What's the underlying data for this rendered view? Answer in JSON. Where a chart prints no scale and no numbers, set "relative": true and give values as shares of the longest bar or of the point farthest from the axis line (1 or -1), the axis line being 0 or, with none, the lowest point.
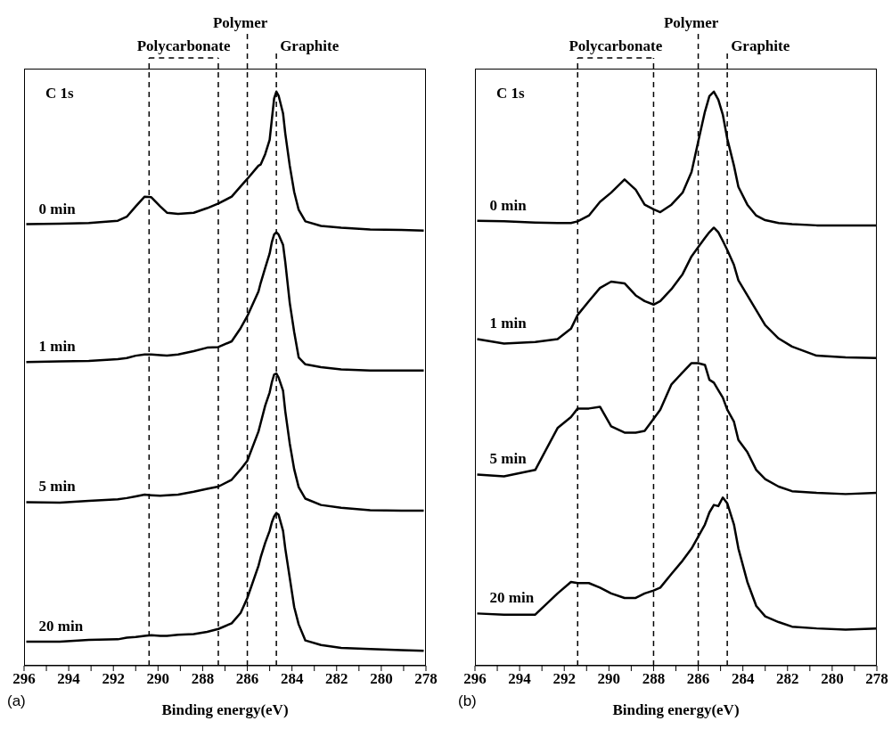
{
  "chart_data": [
    {
      "type": "line",
      "relative": true,
      "xlabel": "Binding energy(eV)",
      "xlim": [
        296,
        278
      ],
      "xticks": [
        296,
        {
          "value": 295,
          "label": null
        },
        294,
        {
          "value": 293,
          "label": null
        },
        292,
        {
          "value": 291,
          "label": null
        },
        290,
        {
          "value": 289,
          "label": null
        },
        288,
        {
          "value": 287,
          "label": null
        },
        286,
        {
          "value": 285,
          "label": null
        },
        284,
        {
          "value": 283,
          "label": null
        },
        282,
        {
          "value": 281,
          "label": null
        },
        280,
        {
          "value": 279,
          "label": null
        },
        278
      ],
      "annotations": [
        "C 1s",
        "(a)",
        "Polycarbonate"
      ],
      "x": [
        295.9,
        294.4,
        293.1,
        291.8,
        291.4,
        291.0,
        290.6,
        290.3,
        289.9,
        289.6,
        289.1,
        288.4,
        287.8,
        287.3,
        286.7,
        286.3,
        286.0,
        285.5,
        285.4,
        285.2,
        285.0,
        284.9,
        284.8,
        284.7,
        284.6,
        284.4,
        284.3,
        284.1,
        283.9,
        283.7,
        283.4,
        282.7,
        281.8,
        280.5,
        279.1,
        278.1
      ],
      "series": [
        {
          "name": "0 min",
          "color": "#000000",
          "values": [
            0.769,
            0.77,
            0.771,
            0.775,
            0.782,
            0.8,
            0.817,
            0.816,
            0.8,
            0.789,
            0.787,
            0.789,
            0.797,
            0.805,
            0.817,
            0.835,
            0.848,
            0.871,
            0.873,
            0.891,
            0.916,
            0.952,
            0.988,
            1.0,
            0.993,
            0.962,
            0.927,
            0.871,
            0.825,
            0.794,
            0.774,
            0.766,
            0.763,
            0.76,
            0.759,
            0.758
          ]
        },
        {
          "name": "1 min",
          "color": "#000000",
          "values": [
            0.529,
            0.53,
            0.531,
            0.534,
            0.536,
            0.54,
            0.542,
            0.542,
            0.541,
            0.54,
            0.542,
            0.548,
            0.554,
            0.555,
            0.565,
            0.588,
            0.609,
            0.652,
            0.667,
            0.693,
            0.718,
            0.738,
            0.751,
            0.755,
            0.751,
            0.733,
            0.703,
            0.632,
            0.581,
            0.537,
            0.525,
            0.52,
            0.516,
            0.514,
            0.514,
            0.514
          ]
        },
        {
          "name": "5 min",
          "color": "#000000",
          "values": [
            0.285,
            0.284,
            0.287,
            0.29,
            0.292,
            0.295,
            0.298,
            0.297,
            0.296,
            0.297,
            0.298,
            0.303,
            0.308,
            0.312,
            0.324,
            0.342,
            0.357,
            0.408,
            0.423,
            0.453,
            0.476,
            0.494,
            0.507,
            0.509,
            0.502,
            0.479,
            0.443,
            0.387,
            0.342,
            0.311,
            0.291,
            0.28,
            0.275,
            0.271,
            0.27,
            0.27
          ]
        },
        {
          "name": "20 min",
          "color": "#000000",
          "values": [
            0.042,
            0.042,
            0.045,
            0.046,
            0.049,
            0.05,
            0.052,
            0.053,
            0.052,
            0.052,
            0.054,
            0.055,
            0.059,
            0.064,
            0.074,
            0.092,
            0.118,
            0.174,
            0.189,
            0.214,
            0.235,
            0.25,
            0.26,
            0.266,
            0.263,
            0.235,
            0.204,
            0.153,
            0.102,
            0.072,
            0.044,
            0.036,
            0.031,
            0.029,
            0.027,
            0.026
          ]
        }
      ],
      "ref_lines": [
        {
          "axis": "x",
          "value": 290.4,
          "label": null,
          "color": "#000000",
          "line_style": "dashed"
        },
        {
          "axis": "x",
          "value": 287.3,
          "label": null,
          "color": "#000000",
          "line_style": "dashed"
        },
        {
          "axis": "x",
          "value": 286.0,
          "label": "Polymer",
          "color": "#000000",
          "line_style": "dashed"
        },
        {
          "axis": "x",
          "value": 284.7,
          "label": "Graphite",
          "color": "#000000",
          "line_style": "dashed"
        }
      ]
    },
    {
      "type": "line",
      "relative": true,
      "xlabel": "Binding energy(eV)",
      "xlim": [
        296,
        278
      ],
      "xticks": [
        296,
        {
          "value": 295,
          "label": null
        },
        294,
        {
          "value": 293,
          "label": null
        },
        292,
        {
          "value": 291,
          "label": null
        },
        290,
        {
          "value": 289,
          "label": null
        },
        288,
        {
          "value": 287,
          "label": null
        },
        286,
        {
          "value": 285,
          "label": null
        },
        284,
        {
          "value": 283,
          "label": null
        },
        282,
        {
          "value": 281,
          "label": null
        },
        280,
        {
          "value": 279,
          "label": null
        },
        278
      ],
      "annotations": [
        "C 1s",
        "(b)",
        "Polycarbonate"
      ],
      "x": [
        295.9,
        294.7,
        293.3,
        292.3,
        291.7,
        291.4,
        290.9,
        290.4,
        289.9,
        289.3,
        288.8,
        288.4,
        288.0,
        287.7,
        287.2,
        286.7,
        286.3,
        286.0,
        285.7,
        285.5,
        285.3,
        285.1,
        284.9,
        284.7,
        284.4,
        284.2,
        283.8,
        283.4,
        283.0,
        282.4,
        281.8,
        280.7,
        279.4,
        278.0
      ],
      "series": [
        {
          "name": "0 min",
          "color": "#000000",
          "values": [
            0.775,
            0.774,
            0.772,
            0.771,
            0.771,
            0.774,
            0.784,
            0.808,
            0.824,
            0.847,
            0.829,
            0.803,
            0.795,
            0.79,
            0.803,
            0.824,
            0.86,
            0.913,
            0.965,
            0.992,
            1.0,
            0.986,
            0.96,
            0.918,
            0.871,
            0.834,
            0.803,
            0.784,
            0.776,
            0.771,
            0.769,
            0.767,
            0.767,
            0.767
          ]
        },
        {
          "name": "1 min",
          "color": "#000000",
          "values": [
            0.569,
            0.561,
            0.564,
            0.569,
            0.587,
            0.611,
            0.635,
            0.658,
            0.669,
            0.666,
            0.645,
            0.635,
            0.629,
            0.635,
            0.656,
            0.682,
            0.713,
            0.729,
            0.745,
            0.755,
            0.763,
            0.755,
            0.74,
            0.724,
            0.698,
            0.671,
            0.645,
            0.619,
            0.593,
            0.57,
            0.556,
            0.54,
            0.537,
            0.536
          ]
        },
        {
          "name": "5 min",
          "color": "#000000",
          "values": [
            0.333,
            0.33,
            0.341,
            0.414,
            0.433,
            0.448,
            0.448,
            0.451,
            0.417,
            0.406,
            0.406,
            0.409,
            0.43,
            0.446,
            0.49,
            0.511,
            0.527,
            0.527,
            0.524,
            0.498,
            0.493,
            0.48,
            0.467,
            0.446,
            0.425,
            0.393,
            0.372,
            0.341,
            0.325,
            0.312,
            0.304,
            0.301,
            0.299,
            0.301
          ]
        },
        {
          "name": "20 min",
          "color": "#000000",
          "values": [
            0.091,
            0.089,
            0.089,
            0.126,
            0.146,
            0.144,
            0.144,
            0.136,
            0.126,
            0.118,
            0.118,
            0.126,
            0.131,
            0.136,
            0.16,
            0.183,
            0.204,
            0.225,
            0.246,
            0.267,
            0.28,
            0.278,
            0.293,
            0.283,
            0.246,
            0.204,
            0.146,
            0.104,
            0.086,
            0.076,
            0.068,
            0.065,
            0.063,
            0.065
          ]
        }
      ],
      "ref_lines": [
        {
          "axis": "x",
          "value": 291.4,
          "label": null,
          "color": "#000000",
          "line_style": "dashed"
        },
        {
          "axis": "x",
          "value": 288.0,
          "label": null,
          "color": "#000000",
          "line_style": "dashed"
        },
        {
          "axis": "x",
          "value": 286.0,
          "label": "Polymer",
          "color": "#000000",
          "line_style": "dashed"
        },
        {
          "axis": "x",
          "value": 284.7,
          "label": "Graphite",
          "color": "#000000",
          "line_style": "dashed"
        }
      ]
    }
  ]
}
